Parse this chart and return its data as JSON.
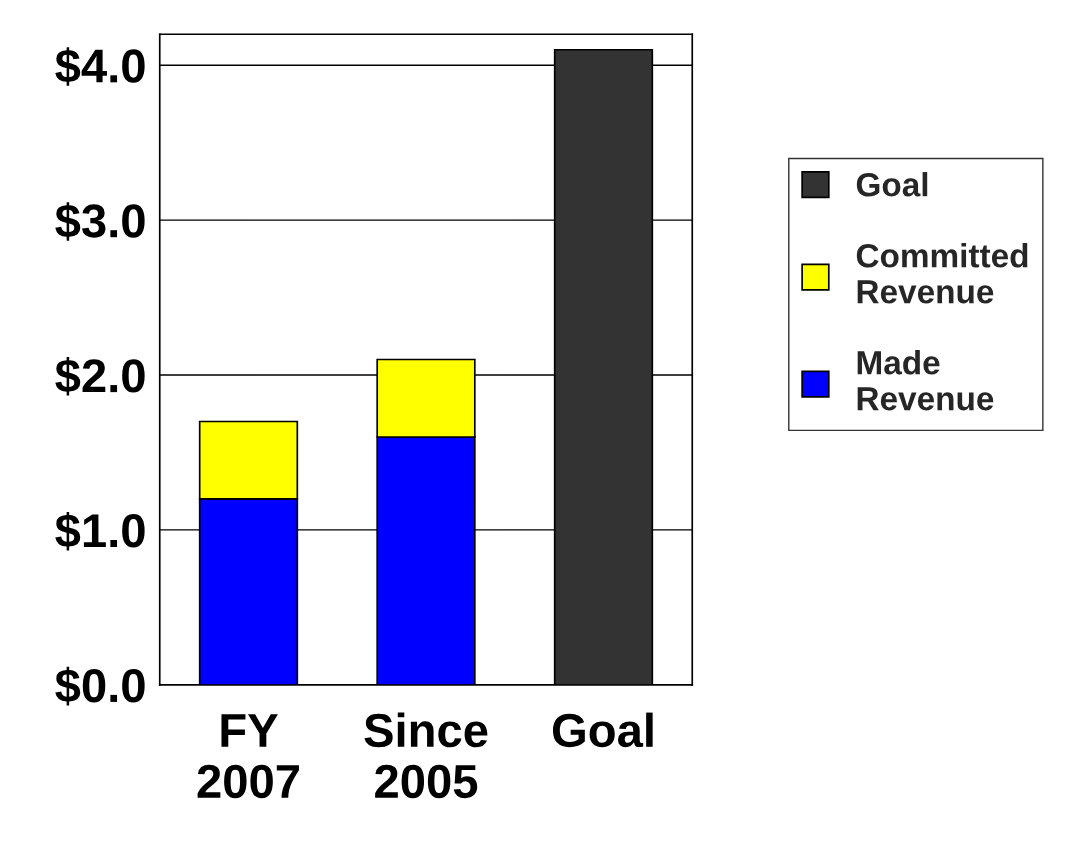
{
  "chart_data": {
    "type": "bar",
    "stacked": true,
    "categories": [
      "FY\n2007",
      "Since\n2005",
      "Goal"
    ],
    "series": [
      {
        "name": "Made\nRevenue",
        "color": "#0000ff",
        "values": [
          1.2,
          1.6,
          null
        ]
      },
      {
        "name": "Committed\nRevenue",
        "color": "#ffff00",
        "values": [
          0.5,
          0.5,
          null
        ]
      },
      {
        "name": "Goal",
        "color": "#333333",
        "values": [
          null,
          null,
          4.1
        ]
      }
    ],
    "ylim": [
      0,
      4.2
    ],
    "yticks": [
      {
        "value": 0,
        "label": "$0.0"
      },
      {
        "value": 1,
        "label": "$1.0"
      },
      {
        "value": 2,
        "label": "$2.0"
      },
      {
        "value": 3,
        "label": "$3.0"
      },
      {
        "value": 4,
        "label": "$4.0"
      }
    ],
    "grid": "y",
    "legend": "right"
  }
}
